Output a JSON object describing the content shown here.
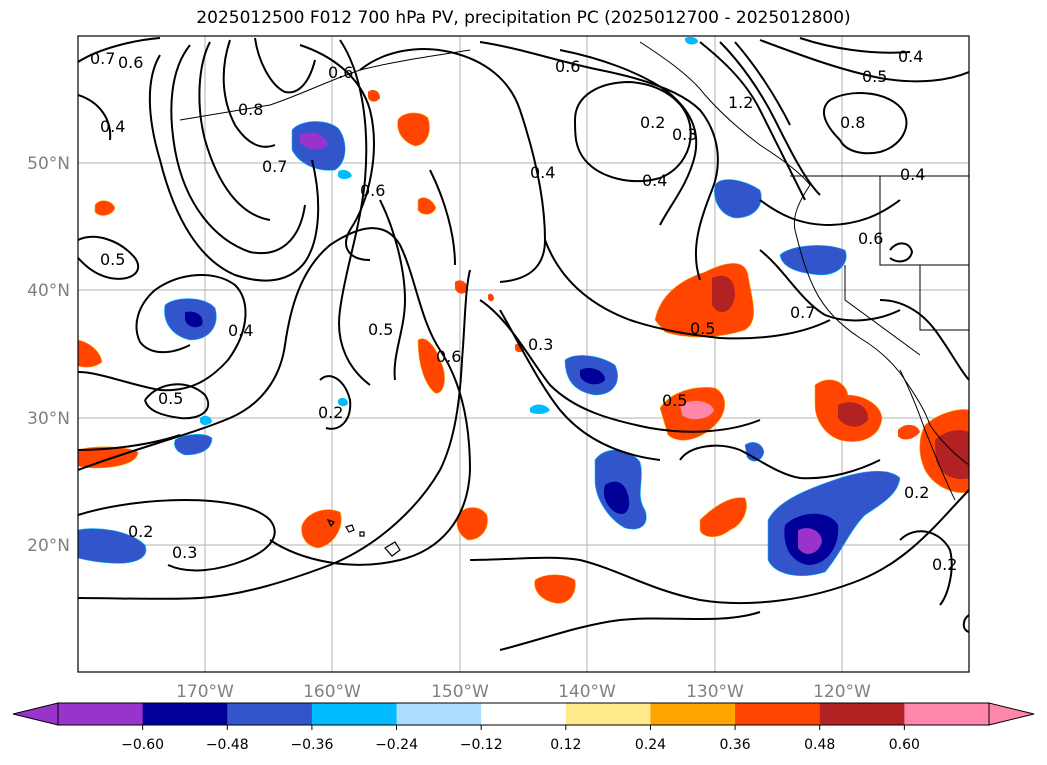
{
  "title": "2025012500 F012 700 hPa PV, precipitation PC (2025012700 - 2025012800)",
  "map": {
    "lon_labels": [
      "170°W",
      "160°W",
      "150°W",
      "140°W",
      "130°W",
      "120°W"
    ],
    "lat_labels": [
      "20°N",
      "30°N",
      "40°N",
      "50°N"
    ],
    "contour_labels": [
      "0.7",
      "0.6",
      "0.4",
      "0.8",
      "0.7",
      "0.6",
      "0.5",
      "0.6",
      "0.4",
      "0.5",
      "0.4",
      "0.5",
      "0.6",
      "0.2",
      "0.2",
      "0.3",
      "0.3",
      "0.5",
      "0.5",
      "0.4",
      "0.2",
      "0.3",
      "0.6",
      "0.8",
      "0.5",
      "0.4",
      "0.4",
      "0.6",
      "0.7",
      "0.2",
      "0.2",
      "1.2"
    ]
  },
  "colorbar": {
    "ticks": [
      "−0.60",
      "−0.48",
      "−0.36",
      "−0.24",
      "−0.12",
      "0.12",
      "0.24",
      "0.36",
      "0.48",
      "0.60"
    ],
    "colors": [
      "#9933cc",
      "#000099",
      "#3355cc",
      "#00bbff",
      "#aaddff",
      "#ffffff",
      "#ffe98a",
      "#ffa500",
      "#ff4500",
      "#b22222",
      "#ff88aa",
      "#ff88aa"
    ],
    "extend_low_color": "#9933cc",
    "extend_high_color": "#ff88aa"
  }
}
